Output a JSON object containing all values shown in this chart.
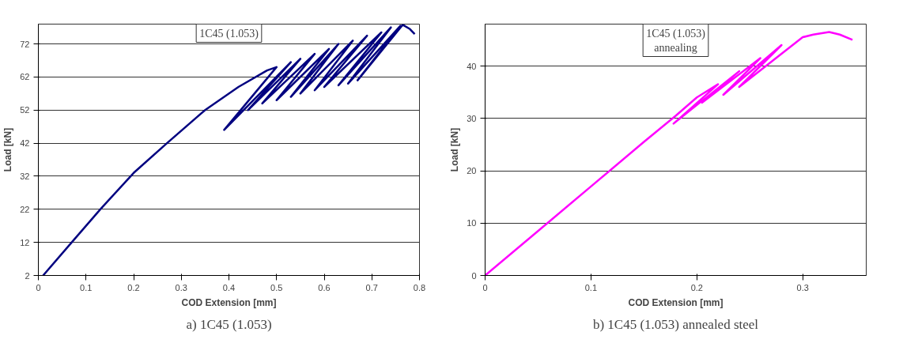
{
  "chart_data": [
    {
      "type": "line",
      "title": "1C45 (1.053)",
      "xlabel": "COD Extension [mm]",
      "ylabel": "Load [kN]",
      "annotations": [
        "a) 1C45 (1.053)"
      ],
      "xlim": [
        0,
        0.8
      ],
      "ylim": [
        2,
        78
      ],
      "xticks": [
        0,
        0.1,
        0.2,
        0.3,
        0.4,
        0.5,
        0.6,
        0.7,
        0.8
      ],
      "yticks": [
        2,
        12,
        22,
        32,
        42,
        52,
        62,
        72
      ],
      "grid": "y",
      "marker": "none",
      "line_style": "solid",
      "series": [
        {
          "color": "#000080",
          "x": [
            0.01,
            0.07,
            0.13,
            0.2,
            0.27,
            0.35,
            0.42,
            0.48,
            0.5,
            0.39,
            0.53,
            0.44,
            0.55,
            0.47,
            0.58,
            0.5,
            0.61,
            0.53,
            0.63,
            0.55,
            0.66,
            0.58,
            0.69,
            0.6,
            0.72,
            0.63,
            0.74,
            0.65,
            0.76,
            0.67,
            0.765,
            0.78,
            0.79
          ],
          "values": [
            2,
            12,
            22,
            33,
            42,
            52,
            59,
            64,
            65,
            46,
            66.5,
            52,
            67.5,
            54,
            69,
            55,
            70.5,
            56,
            72,
            57,
            73,
            58,
            74.5,
            59,
            75.5,
            59.5,
            77,
            60,
            77.5,
            61,
            77.8,
            76.5,
            75
          ]
        }
      ]
    },
    {
      "type": "line",
      "title": "1C45 (1.053)\nannealing",
      "xlabel": "COD Extension [mm]",
      "ylabel": "Load [kN]",
      "annotations": [
        "b) 1C45 (1.053) annealed steel"
      ],
      "xlim": [
        0,
        0.36
      ],
      "ylim": [
        0,
        48
      ],
      "xticks": [
        0,
        0.1,
        0.2,
        0.3
      ],
      "yticks": [
        0,
        10,
        20,
        30,
        40
      ],
      "grid": "y",
      "marker": "none",
      "line_style": "solid",
      "series": [
        {
          "color": "#ff00ff",
          "x": [
            0,
            0.05,
            0.1,
            0.15,
            0.18,
            0.2,
            0.22,
            0.178,
            0.24,
            0.205,
            0.26,
            0.225,
            0.28,
            0.24,
            0.3,
            0.31,
            0.325,
            0.335,
            0.347
          ],
          "values": [
            0,
            8.5,
            17,
            25.5,
            30.5,
            34,
            36.5,
            29,
            39,
            33,
            41.5,
            34.5,
            44,
            36,
            45.5,
            46,
            46.5,
            46,
            45
          ]
        }
      ]
    }
  ]
}
